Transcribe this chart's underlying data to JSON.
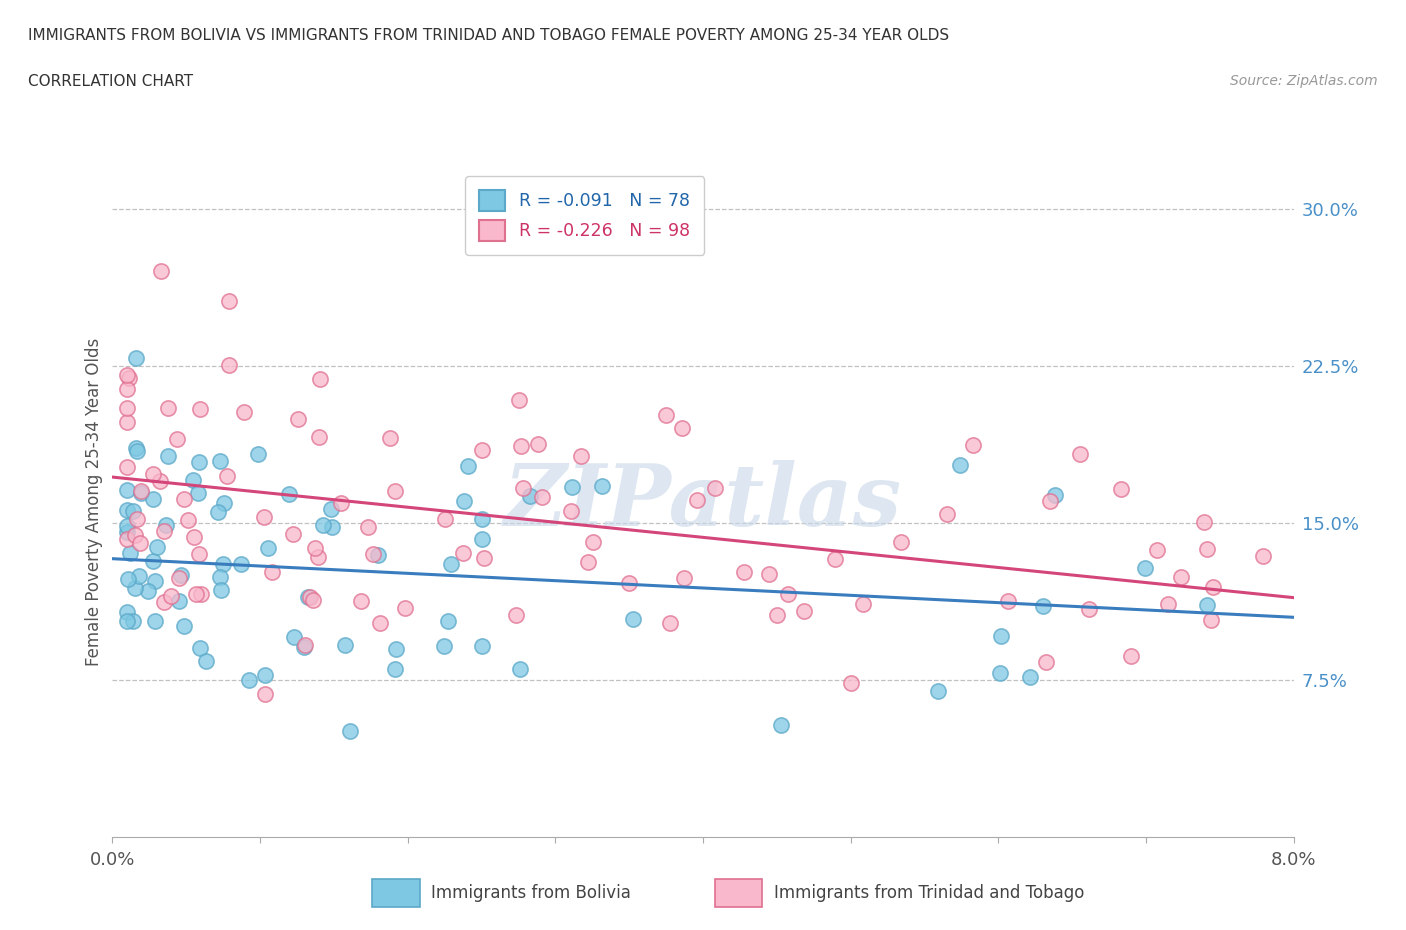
{
  "title_line1": "IMMIGRANTS FROM BOLIVIA VS IMMIGRANTS FROM TRINIDAD AND TOBAGO FEMALE POVERTY AMONG 25-34 YEAR OLDS",
  "title_line2": "CORRELATION CHART",
  "source": "Source: ZipAtlas.com",
  "ylabel": "Female Poverty Among 25-34 Year Olds",
  "ytick_values": [
    0.075,
    0.15,
    0.225,
    0.3
  ],
  "ytick_labels": [
    "7.5%",
    "15.0%",
    "22.5%",
    "30.0%"
  ],
  "xlim": [
    0.0,
    0.08
  ],
  "ylim": [
    0.0,
    0.32
  ],
  "bolivia_color": "#7ec8e3",
  "bolivia_edge": "#5ba8c8",
  "tt_color": "#f9b8cb",
  "tt_edge": "#e07090",
  "line_bolivia_color": "#3a7dbf",
  "line_tt_color": "#d4467a",
  "legend_R_bolivia": "R = -0.091",
  "legend_N_bolivia": "N = 78",
  "legend_R_tt": "R = -0.226",
  "legend_N_tt": "N = 98",
  "watermark": "ZIPatlas",
  "watermark_color": "#c8d8e8",
  "bolivia_intercept": 0.133,
  "bolivia_slope": -0.35,
  "tt_intercept": 0.172,
  "tt_slope": -0.72
}
